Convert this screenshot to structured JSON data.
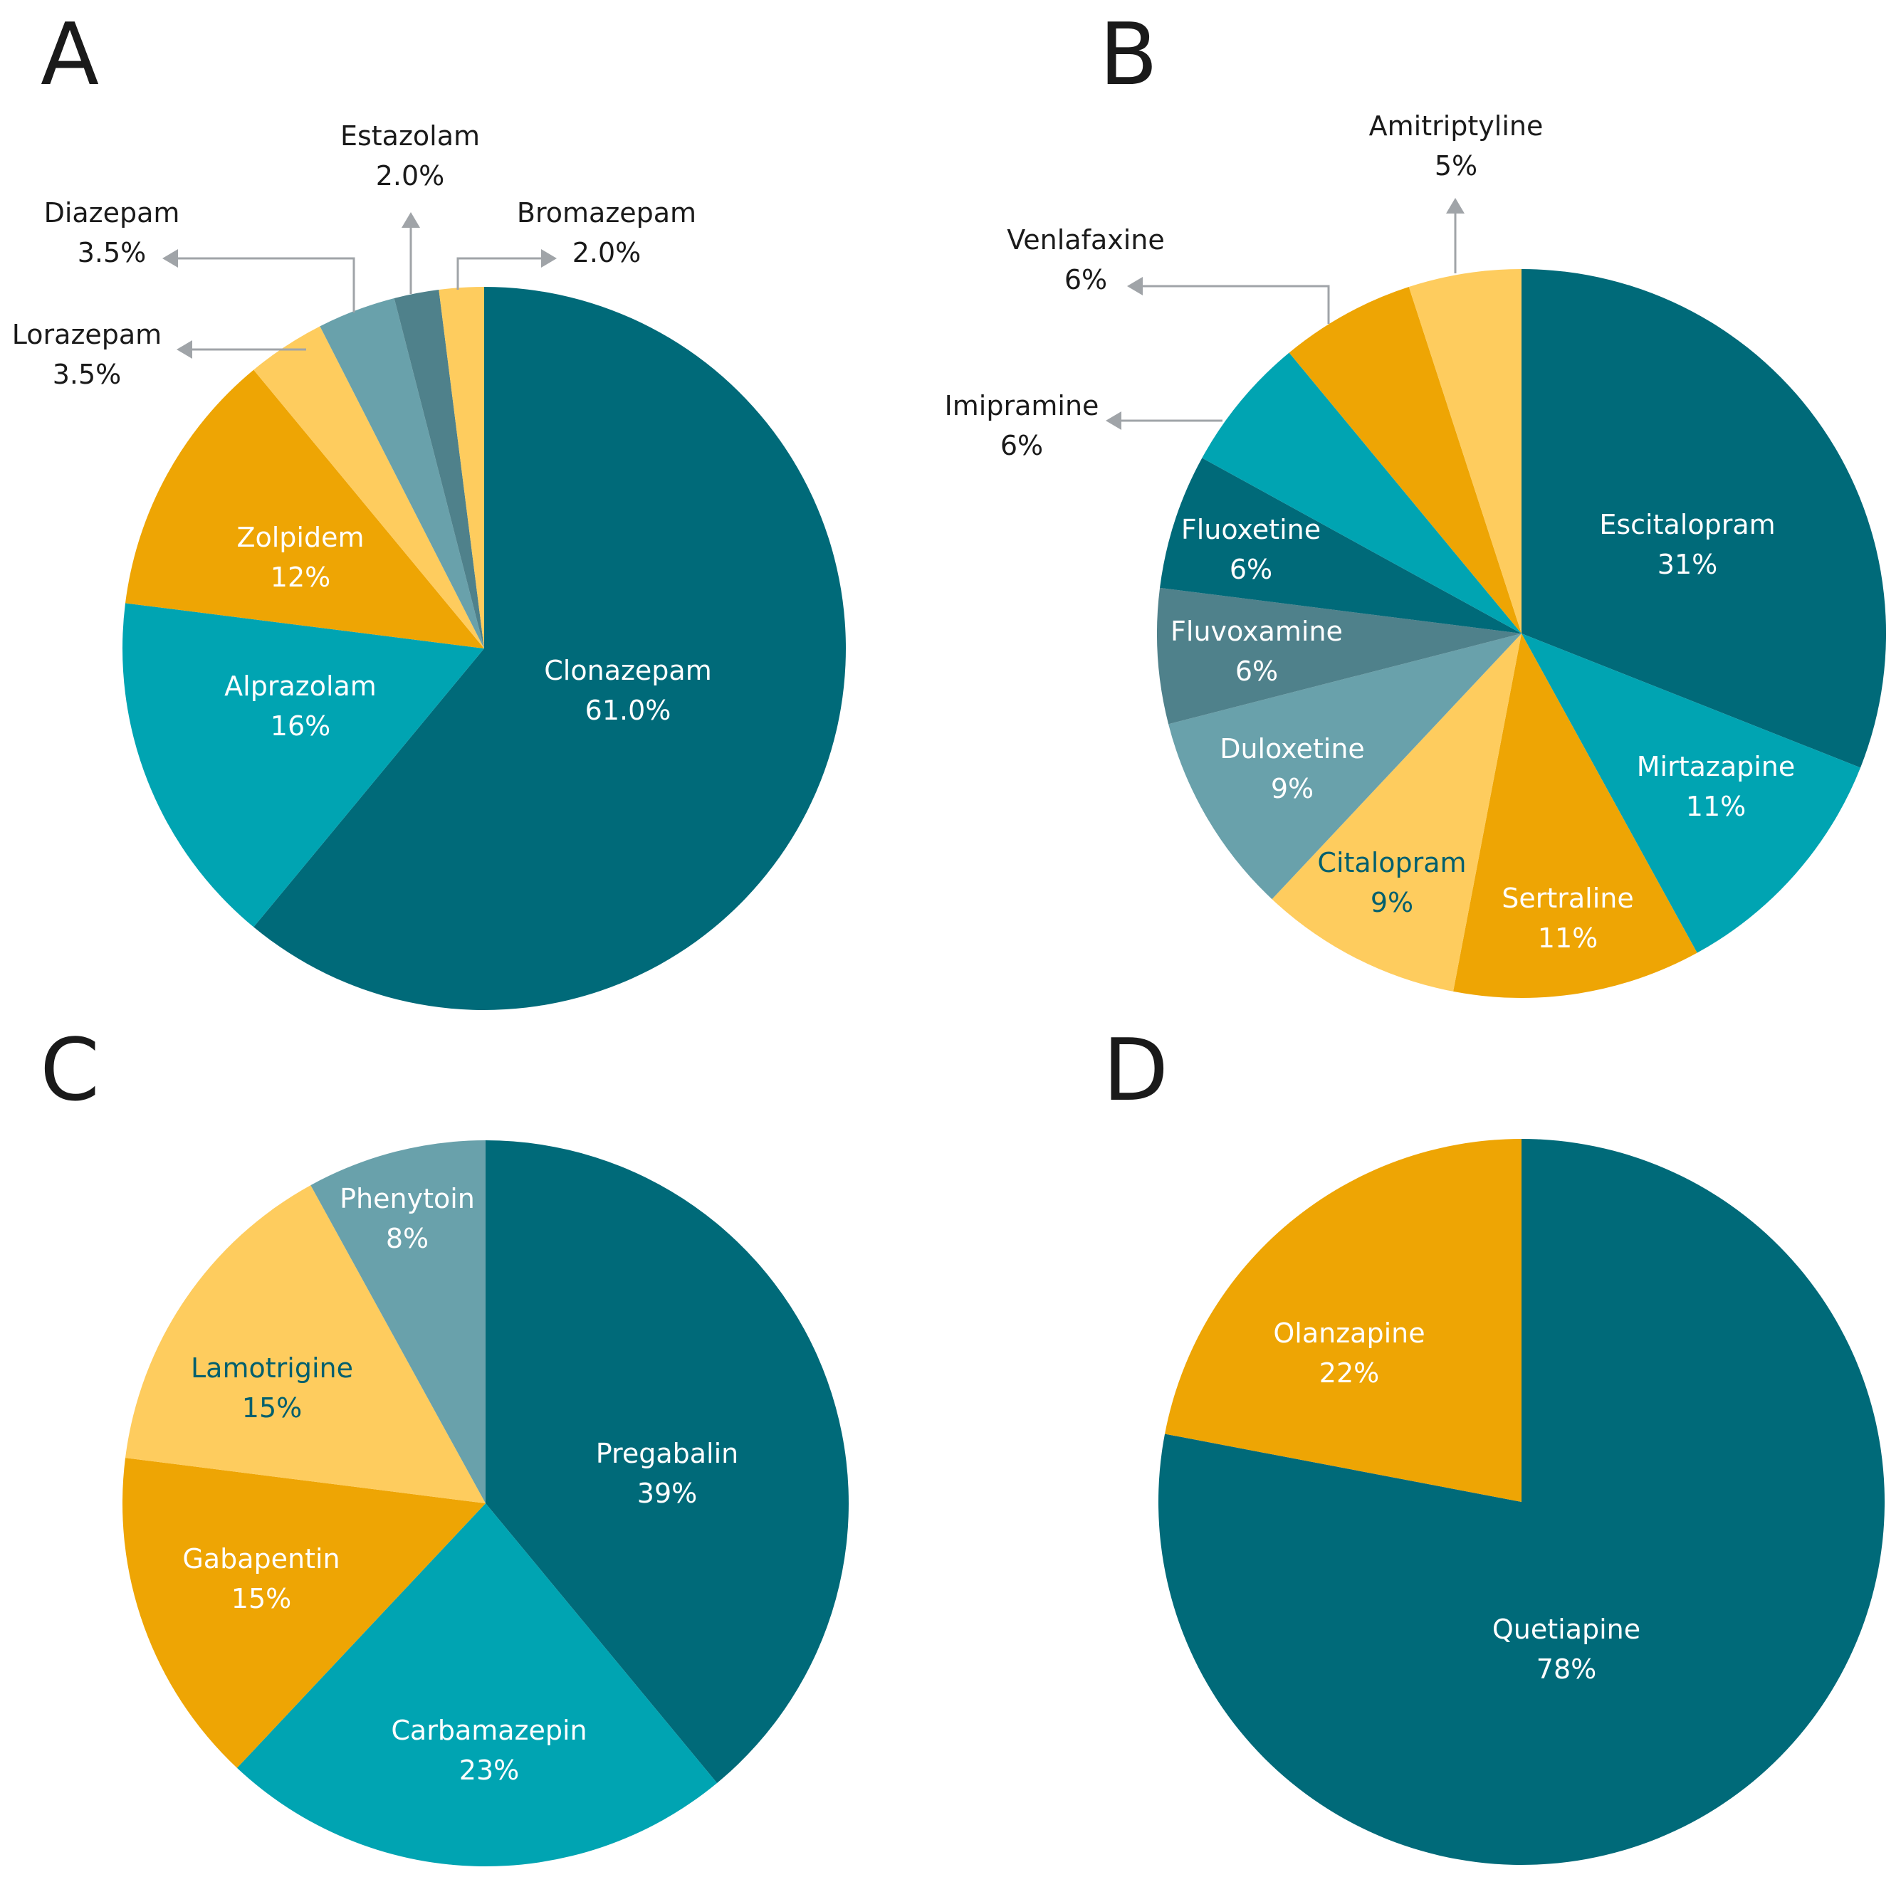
{
  "colors": {
    "dark_teal": "#006A79",
    "teal": "#00A4B2",
    "orange": "#EEA504",
    "light_yellow": "#FECC5E",
    "gray_teal": "#69A1AB",
    "slate": "#4F818B",
    "arrow_gray": "#A0A4A8",
    "label_light": "#ffffff",
    "label_dark": "#005F6E"
  },
  "chart_data": [
    {
      "panel": "A",
      "type": "pie",
      "title": "",
      "slices": [
        {
          "label": "Clonazepam",
          "value": 61.0,
          "value_text": "61.0%",
          "color": "dark_teal",
          "label_color": "label_light"
        },
        {
          "label": "Alprazolam",
          "value": 16,
          "value_text": "16%",
          "color": "teal",
          "label_color": "label_light"
        },
        {
          "label": "Zolpidem",
          "value": 12,
          "value_text": "12%",
          "color": "orange",
          "label_color": "label_light"
        },
        {
          "label": "Lorazepam",
          "value": 3.5,
          "value_text": "3.5%",
          "color": "light_yellow",
          "callout": true
        },
        {
          "label": "Diazepam",
          "value": 3.5,
          "value_text": "3.5%",
          "color": "gray_teal",
          "callout": true
        },
        {
          "label": "Estazolam",
          "value": 2.0,
          "value_text": "2.0%",
          "color": "slate",
          "callout": true
        },
        {
          "label": "Bromazepam",
          "value": 2.0,
          "value_text": "2.0%",
          "color": "light_yellow",
          "callout": true
        }
      ]
    },
    {
      "panel": "B",
      "type": "pie",
      "title": "",
      "slices": [
        {
          "label": "Escitalopram",
          "value": 31,
          "value_text": "31%",
          "color": "dark_teal",
          "label_color": "label_light"
        },
        {
          "label": "Mirtazapine",
          "value": 11,
          "value_text": "11%",
          "color": "teal",
          "label_color": "label_light"
        },
        {
          "label": "Sertraline",
          "value": 11,
          "value_text": "11%",
          "color": "orange",
          "label_color": "label_light"
        },
        {
          "label": "Citalopram",
          "value": 9,
          "value_text": "9%",
          "color": "light_yellow",
          "label_color": "label_dark"
        },
        {
          "label": "Duloxetine",
          "value": 9,
          "value_text": "9%",
          "color": "gray_teal",
          "label_color": "label_light"
        },
        {
          "label": "Fluvoxamine",
          "value": 6,
          "value_text": "6%",
          "color": "slate",
          "label_color": "label_light"
        },
        {
          "label": "Fluoxetine",
          "value": 6,
          "value_text": "6%",
          "color": "dark_teal",
          "label_color": "label_light"
        },
        {
          "label": "Imipramine",
          "value": 6,
          "value_text": "6%",
          "color": "teal",
          "callout": true
        },
        {
          "label": "Venlafaxine",
          "value": 6,
          "value_text": "6%",
          "color": "orange",
          "callout": true
        },
        {
          "label": "Amitriptyline",
          "value": 5,
          "value_text": "5%",
          "color": "light_yellow",
          "callout": true
        }
      ]
    },
    {
      "panel": "C",
      "type": "pie",
      "title": "",
      "slices": [
        {
          "label": "Pregabalin",
          "value": 39,
          "value_text": "39%",
          "color": "dark_teal",
          "label_color": "label_light"
        },
        {
          "label": "Carbamazepin",
          "value": 23,
          "value_text": "23%",
          "color": "teal",
          "label_color": "label_light"
        },
        {
          "label": "Gabapentin",
          "value": 15,
          "value_text": "15%",
          "color": "orange",
          "label_color": "label_light"
        },
        {
          "label": "Lamotrigine",
          "value": 15,
          "value_text": "15%",
          "color": "light_yellow",
          "label_color": "label_dark"
        },
        {
          "label": "Phenytoin",
          "value": 8,
          "value_text": "8%",
          "color": "gray_teal",
          "label_color": "label_light"
        }
      ]
    },
    {
      "panel": "D",
      "type": "pie",
      "title": "",
      "slices": [
        {
          "label": "Quetiapine",
          "value": 78,
          "value_text": "78%",
          "color": "dark_teal",
          "label_color": "label_light"
        },
        {
          "label": "Olanzapine",
          "value": 22,
          "value_text": "22%",
          "color": "orange",
          "label_color": "label_light"
        }
      ]
    }
  ]
}
